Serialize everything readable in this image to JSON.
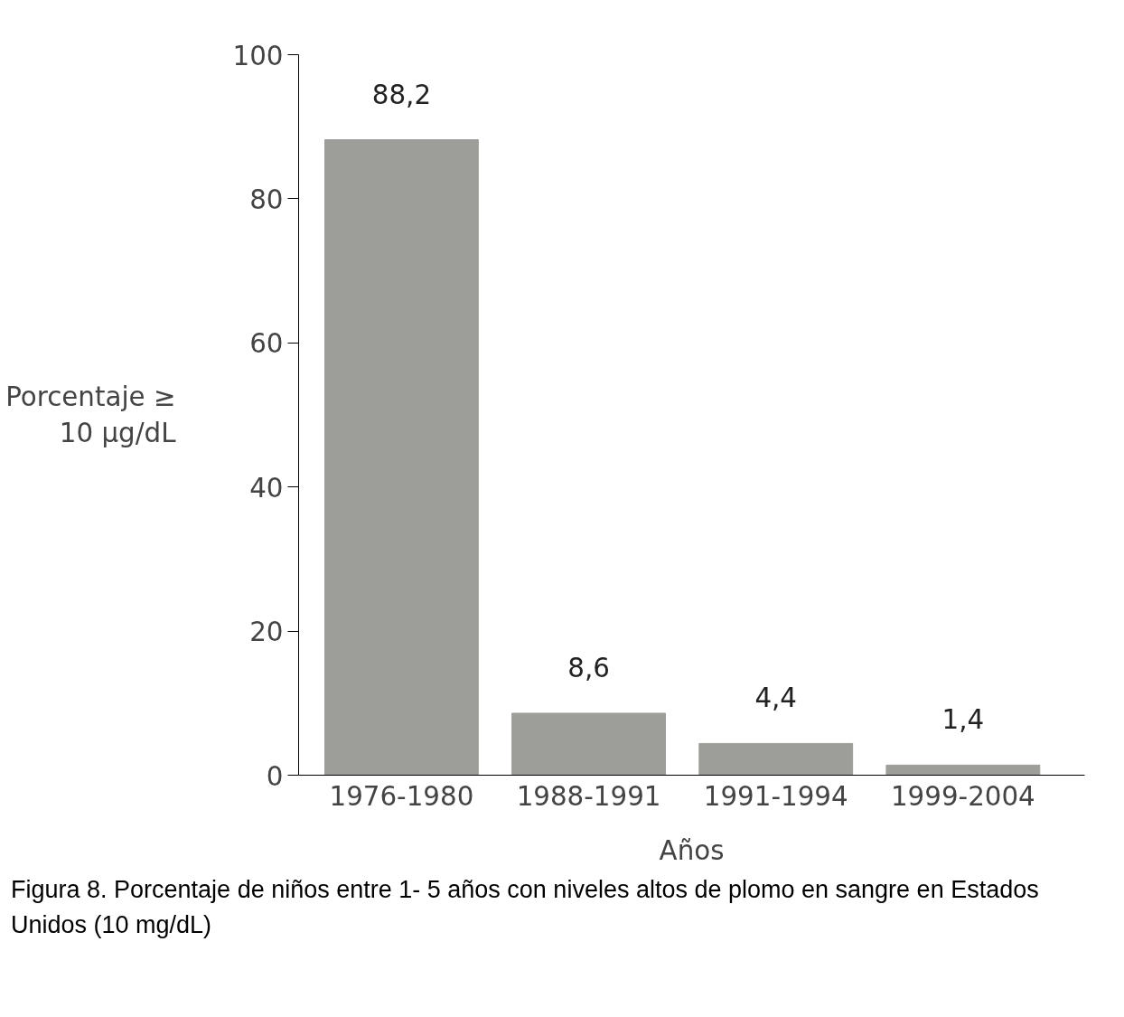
{
  "chart_data": {
    "type": "bar",
    "ylabel": "Porcentaje ≥\n10 μg/dL",
    "xlabel": "Años",
    "categories": [
      "1976-1980",
      "1988-1991",
      "1991-1994",
      "1999-2004"
    ],
    "values": [
      88.2,
      8.6,
      4.4,
      1.4
    ],
    "value_labels": [
      "88,2",
      "8,6",
      "4,4",
      "1,4"
    ],
    "color": "#9d9e99",
    "ylim": [
      0,
      100
    ],
    "yticks": [
      0,
      20,
      40,
      60,
      80,
      100
    ],
    "grid": false,
    "annotations": [
      "Figura 8. Porcentaje de niños entre 1- 5 años con niveles altos de plomo en sangre en Estados Unidos (10 mg/dL)"
    ]
  }
}
